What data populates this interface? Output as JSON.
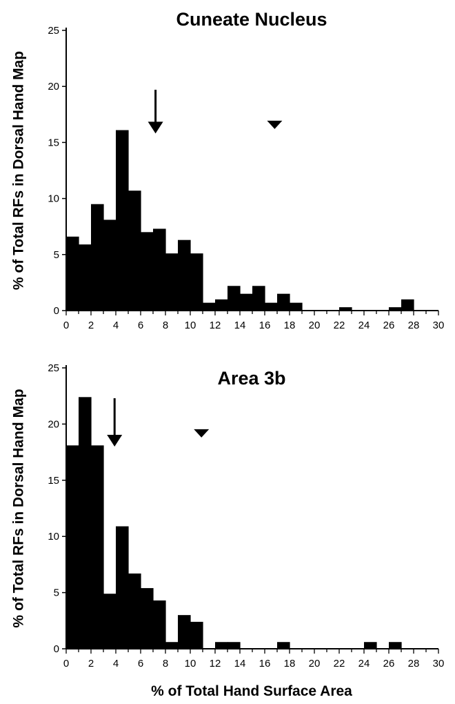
{
  "figure": {
    "shared_xlabel": "% of Total Hand Surface Area"
  },
  "chart_data": [
    {
      "type": "bar",
      "title": "Cuneate Nucleus",
      "xlabel": "",
      "ylabel": "% of Total RFs in Dorsal Hand Map",
      "bin_width": 1,
      "bin_starts": [
        0,
        1,
        2,
        3,
        4,
        5,
        6,
        7,
        8,
        9,
        10,
        11,
        12,
        13,
        14,
        15,
        16,
        17,
        18,
        19,
        20,
        21,
        22,
        23,
        24,
        25,
        26,
        27,
        28,
        29
      ],
      "values": [
        6.6,
        5.9,
        9.5,
        8.1,
        16.1,
        10.7,
        7.0,
        7.3,
        5.1,
        6.3,
        5.1,
        0.7,
        1.0,
        2.2,
        1.5,
        2.2,
        0.7,
        1.5,
        0.7,
        0,
        0,
        0,
        0.3,
        0,
        0,
        0,
        0.3,
        1.0,
        0,
        0
      ],
      "xlim": [
        0,
        30
      ],
      "ylim": [
        0,
        25
      ],
      "xticks": [
        0,
        2,
        4,
        6,
        8,
        10,
        12,
        14,
        16,
        18,
        20,
        22,
        24,
        26,
        28,
        30
      ],
      "yticks": [
        0,
        5,
        10,
        15,
        20,
        25
      ],
      "markers": [
        {
          "kind": "arrow",
          "x": 7.2,
          "y_tip": 15.8,
          "y_top": 19.7
        },
        {
          "kind": "triangle",
          "x": 16.8,
          "y_tip": 16.2
        }
      ],
      "grid": false,
      "legend": "none"
    },
    {
      "type": "bar",
      "title": "Area 3b",
      "xlabel": "% of Total Hand Surface Area",
      "ylabel": "% of Total RFs in Dorsal Hand Map",
      "bin_width": 1,
      "bin_starts": [
        0,
        1,
        2,
        3,
        4,
        5,
        6,
        7,
        8,
        9,
        10,
        11,
        12,
        13,
        14,
        15,
        16,
        17,
        18,
        19,
        20,
        21,
        22,
        23,
        24,
        25,
        26,
        27,
        28,
        29
      ],
      "values": [
        18.1,
        22.4,
        18.1,
        4.9,
        10.9,
        6.7,
        5.4,
        4.3,
        0.6,
        3.0,
        2.4,
        0,
        0.6,
        0.6,
        0,
        0,
        0,
        0.6,
        0,
        0,
        0,
        0,
        0,
        0,
        0.6,
        0,
        0.6,
        0,
        0,
        0
      ],
      "xlim": [
        0,
        30
      ],
      "ylim": [
        0,
        25
      ],
      "xticks": [
        0,
        2,
        4,
        6,
        8,
        10,
        12,
        14,
        16,
        18,
        20,
        22,
        24,
        26,
        28,
        30
      ],
      "yticks": [
        0,
        5,
        10,
        15,
        20,
        25
      ],
      "markers": [
        {
          "kind": "arrow",
          "x": 3.9,
          "y_tip": 18.0,
          "y_top": 22.3
        },
        {
          "kind": "triangle",
          "x": 10.9,
          "y_tip": 18.8
        }
      ],
      "grid": false,
      "legend": "none"
    }
  ]
}
